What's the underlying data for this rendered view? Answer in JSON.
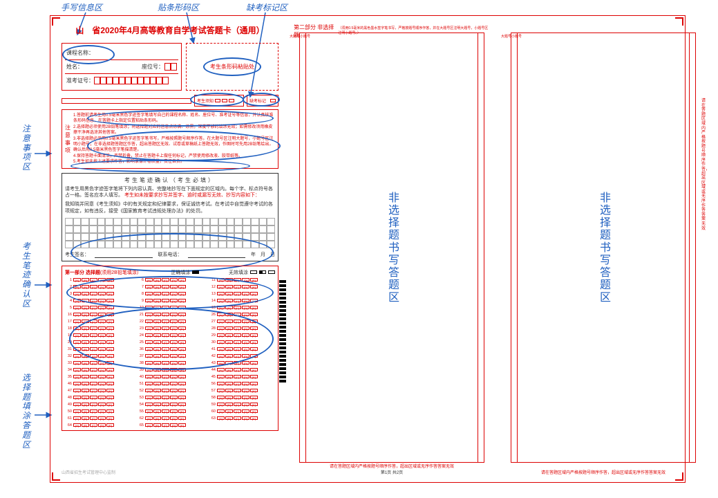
{
  "annotations": {
    "top1": "手写信息区",
    "top2": "贴条形码区",
    "top3": "缺考标记区",
    "side1": "注意事项区",
    "side2": "考生笔迹确认区",
    "side3": "选择题填涂答题区"
  },
  "sheet": {
    "main_title": "山 省2020年4月高等教育自学考试答题卡（通用）",
    "info": {
      "course": "课程名称：",
      "name": "姓名：",
      "seat": "座位号：",
      "ticket": "准考证号：",
      "barcode_label": "考生条形码粘贴处",
      "examiner": "考生须知",
      "absent": "缺考标记"
    },
    "notice": {
      "label": "注意事项",
      "lines": [
        "1.答题前请考生用0.5毫米黑色字迹签字笔填写自己的课程名称、姓名、座位号、准考证号等信息，并认真核准条形码信息，在答题卡上指定位置粘贴条形码。",
        "2.选择题必须使用2B铅笔填涂；将选择题对应的信息点涂满、涂黑，深度不够的填涂无效；如需修改须用橡皮擦干净再选涂其他答案。",
        "3.非选择题必须用0.5毫米黑色字迹签字笔书写，严格按照题号顺序作答。在大题号区注明大题号，小题号区注明小题号；在非选择题答题区作答，超出答题区无效、试卷或草稿纸上答题无效，作图时可先用2B铅笔绘出，确认后用0.5毫米黑色签字笔描清楚。",
        "4.保持答题卡面清洁，严禁折叠，禁止在答题卡上做任何标记，严禁使用修改液、胶带纸等。",
        "5.考生如未按上述要求作答，影响录像评卷质量，责任自负。"
      ]
    },
    "pledge": {
      "title": "考生笔迹确认（考生必填）",
      "body1": "请考生用黑色字迹签字笔将下列内容认真、完整地抄写在下面规定的区域内。每个字、标点符号各占一格。签名应本人填写。",
      "body2_red": "考生如未按要求抄写并签字、逾时或漏写无效、抄写内容如下：",
      "body2": "",
      "body3": "我知晓并同意《考生须知》中的有关规定和纪律要求，保证诚信考试。在考试中自觉遵守考试的各项规定，如有违反，接受《国家教育考试违规处理办法》的处罚。",
      "sign": "考生签名：",
      "phone": "联系电话：",
      "date": "年　月　日"
    },
    "choice": {
      "part_title": "第一部分 选择题",
      "hint": "(须用2B铅笔填涂）",
      "correct": "正确填涂",
      "invalid": "无效填涂",
      "options": [
        "A",
        "B",
        "C",
        "D",
        "E"
      ],
      "rows": 15,
      "cols": 3,
      "start": 1
    },
    "col2": {
      "part_title": "第二部分 非选择题",
      "hint": "（须用0.5毫米的黑色墨水签字笔书写，严格按题号顺序作答，并在大题号区注明大题号，小题号区注明小题号。）",
      "side_l": "大题号小题号",
      "side_r": "大题号小题号",
      "center": "非选择题书写答题区",
      "footer": "请在答题区域内严格按题号顺序作答，超出区域或无序作答答案无效",
      "page": "第1页 共2页"
    },
    "col3": {
      "center": "非选择题书写答题区",
      "footer": "请在答题区域内严格按题号顺序作答，超出区域或无序作答答案无效",
      "side": "请在答题区域内严格按题号顺序作答，超出区域或无序作答答案无效"
    },
    "org": "山西省招生考试管理中心监制"
  },
  "colors": {
    "primary_red": "#d00",
    "annot_blue": "#2060c0"
  }
}
